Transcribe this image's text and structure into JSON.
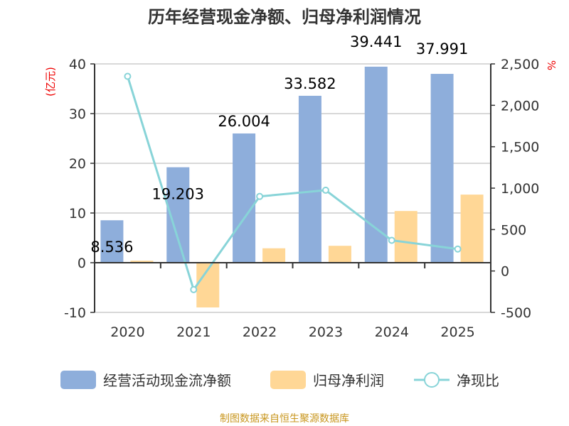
{
  "chart_data": {
    "type": "bar",
    "title": "历年经营现金净额、归母净利润情况",
    "categories": [
      "2020",
      "2021",
      "2022",
      "2023",
      "2024",
      "2025"
    ],
    "series": [
      {
        "name": "经营活动现金流净额",
        "axis": "left",
        "type": "bar",
        "color": "#8eaedb",
        "values": [
          8.536,
          19.203,
          26.004,
          33.582,
          39.441,
          37.991
        ],
        "labels": [
          "8.536",
          "19.203",
          "26.004",
          "33.582",
          "39.441",
          "37.991"
        ]
      },
      {
        "name": "归母净利润",
        "axis": "left",
        "type": "bar",
        "color": "#ffd796",
        "values": [
          0.4,
          -9.0,
          2.9,
          3.4,
          10.4,
          13.7
        ]
      },
      {
        "name": "净现比",
        "axis": "right",
        "type": "line",
        "color": "#88d4d8",
        "values": [
          2350,
          -225,
          900,
          975,
          370,
          265
        ]
      }
    ],
    "left_axis": {
      "unit": "(亿元)",
      "ylim": [
        -10,
        40
      ],
      "ticks": [
        "40",
        "30",
        "20",
        "10",
        "0",
        "-10"
      ]
    },
    "right_axis": {
      "unit": "%",
      "ylim": [
        -500,
        2500
      ],
      "ticks": [
        "2,500",
        "2,000",
        "1,500",
        "1,000",
        "500",
        "0",
        "-500"
      ]
    },
    "grid": true,
    "legend": "bottom"
  },
  "source": "制图数据来自恒生聚源数据库"
}
